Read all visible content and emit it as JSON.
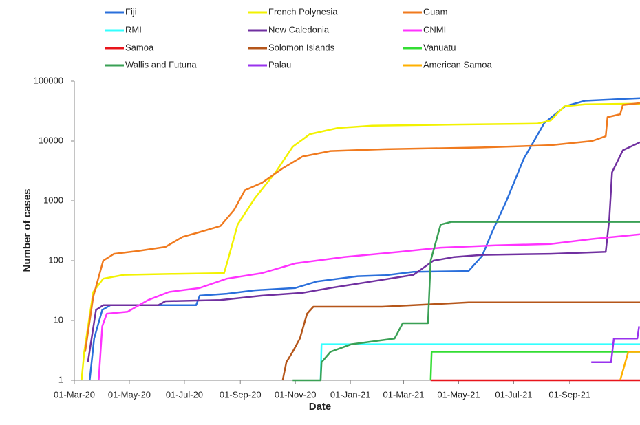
{
  "chart_data": {
    "type": "line",
    "log_y": true,
    "grid": false,
    "legend": "top",
    "xlabel": "Date",
    "ylabel": "Number of cases",
    "xlim": [
      "2020-03-01",
      "2021-11-18"
    ],
    "ylim": [
      1,
      100000
    ],
    "xticks": [
      {
        "value": "2020-03-01",
        "label": "01-Mar-20"
      },
      {
        "value": "2020-05-01",
        "label": "01-May-20"
      },
      {
        "value": "2020-07-01",
        "label": "01-Jul-20"
      },
      {
        "value": "2020-09-01",
        "label": "01-Sep-20"
      },
      {
        "value": "2020-11-01",
        "label": "01-Nov-20"
      },
      {
        "value": "2021-01-01",
        "label": "01-Jan-21"
      },
      {
        "value": "2021-03-01",
        "label": "01-Mar-21"
      },
      {
        "value": "2021-05-01",
        "label": "01-May-21"
      },
      {
        "value": "2021-07-01",
        "label": "01-Jul-21"
      },
      {
        "value": "2021-09-01",
        "label": "01-Sep-21"
      }
    ],
    "yticks": [
      1,
      10,
      100,
      1000,
      10000,
      100000
    ],
    "series": [
      {
        "name": "Fiji",
        "color": "#2a6fdb",
        "x": [
          "2020-03-18",
          "2020-03-23",
          "2020-04-01",
          "2020-04-10",
          "2020-07-14",
          "2020-07-18",
          "2020-08-17",
          "2020-09-17",
          "2020-11-01",
          "2020-11-25",
          "2021-01-09",
          "2021-02-09",
          "2021-03-12",
          "2021-05-12",
          "2021-05-27",
          "2021-06-07",
          "2021-06-23",
          "2021-07-12",
          "2021-08-04",
          "2021-08-27",
          "2021-09-18",
          "2021-11-18"
        ],
        "values": [
          1,
          5,
          15,
          18,
          18,
          26,
          28,
          32,
          35,
          45,
          55,
          57,
          65,
          67,
          120,
          300,
          1000,
          5000,
          20000,
          38000,
          47000,
          52000
        ]
      },
      {
        "name": "French Polynesia",
        "color": "#f2f200",
        "x": [
          "2020-03-09",
          "2020-03-12",
          "2020-03-22",
          "2020-04-02",
          "2020-04-25",
          "2020-06-17",
          "2020-08-14",
          "2020-08-18",
          "2020-08-29",
          "2020-09-17",
          "2020-10-10",
          "2020-10-29",
          "2020-11-17",
          "2020-12-18",
          "2021-01-25",
          "2021-04-26",
          "2021-07-27",
          "2021-08-11",
          "2021-08-26",
          "2021-09-18",
          "2021-11-18"
        ],
        "values": [
          1,
          3,
          30,
          50,
          58,
          60,
          62,
          100,
          400,
          1100,
          3000,
          8000,
          13000,
          16500,
          18000,
          18800,
          19500,
          22000,
          38000,
          41000,
          42000
        ]
      },
      {
        "name": "Guam",
        "color": "#f07a1e",
        "x": [
          "2020-03-13",
          "2020-03-22",
          "2020-04-02",
          "2020-04-14",
          "2020-05-10",
          "2020-06-10",
          "2020-06-29",
          "2020-07-18",
          "2020-08-10",
          "2020-08-25",
          "2020-09-06",
          "2020-09-25",
          "2020-10-18",
          "2020-11-09",
          "2020-12-10",
          "2021-02-09",
          "2021-05-27",
          "2021-08-11",
          "2021-09-26",
          "2021-10-11",
          "2021-10-13",
          "2021-10-27",
          "2021-10-30",
          "2021-11-18"
        ],
        "values": [
          3,
          25,
          100,
          130,
          145,
          170,
          250,
          300,
          380,
          700,
          1500,
          2000,
          3500,
          5500,
          6800,
          7300,
          7800,
          8500,
          10000,
          12000,
          25000,
          28000,
          40000,
          43000
        ]
      },
      {
        "name": "RMI",
        "color": "#33ffff",
        "x": [
          "2020-11-29",
          "2020-11-30",
          "2021-11-18"
        ],
        "values": [
          1,
          4,
          4
        ]
      },
      {
        "name": "New Caledonia",
        "color": "#7030a0",
        "x": [
          "2020-03-16",
          "2020-03-25",
          "2020-04-02",
          "2020-06-02",
          "2020-06-10",
          "2020-08-10",
          "2020-09-25",
          "2020-11-09",
          "2020-12-10",
          "2021-01-25",
          "2021-03-12",
          "2021-04-03",
          "2021-04-26",
          "2021-05-27",
          "2021-08-11",
          "2021-10-11",
          "2021-10-15",
          "2021-10-18",
          "2021-10-30",
          "2021-11-18"
        ],
        "values": [
          2,
          15,
          18,
          18,
          21,
          22,
          26,
          29,
          35,
          45,
          58,
          100,
          115,
          125,
          130,
          140,
          500,
          3000,
          7000,
          9500
        ]
      },
      {
        "name": "CNMI",
        "color": "#ff33ff",
        "x": [
          "2020-03-28",
          "2020-04-01",
          "2020-04-06",
          "2020-04-29",
          "2020-05-22",
          "2020-06-14",
          "2020-07-18",
          "2020-08-17",
          "2020-09-25",
          "2020-11-01",
          "2020-12-25",
          "2021-02-24",
          "2021-04-11",
          "2021-06-11",
          "2021-08-11",
          "2021-09-26",
          "2021-11-18"
        ],
        "values": [
          1,
          8,
          13,
          14,
          22,
          30,
          35,
          50,
          62,
          90,
          115,
          140,
          165,
          180,
          190,
          230,
          275
        ]
      },
      {
        "name": "Samoa",
        "color": "#e8141b",
        "x": [
          "2021-03-31",
          "2021-11-18"
        ],
        "values": [
          1,
          1
        ]
      },
      {
        "name": "Solomon Islands",
        "color": "#b5561a",
        "x": [
          "2020-10-18",
          "2020-10-22",
          "2020-10-29",
          "2020-11-06",
          "2020-11-14",
          "2020-11-21",
          "2021-02-05",
          "2021-03-12",
          "2021-05-12",
          "2021-11-18"
        ],
        "values": [
          1,
          2,
          3,
          5,
          13,
          17,
          17,
          18,
          20,
          20
        ]
      },
      {
        "name": "Vanuatu",
        "color": "#33dd33",
        "x": [
          "2021-03-31",
          "2021-04-01",
          "2021-11-18"
        ],
        "values": [
          1,
          3,
          3
        ]
      },
      {
        "name": "Wallis and Futuna",
        "color": "#3aa055",
        "x": [
          "2020-10-29",
          "2020-11-29",
          "2020-11-30",
          "2020-12-10",
          "2021-01-02",
          "2021-02-19",
          "2021-02-28",
          "2021-03-28",
          "2021-03-31",
          "2021-04-11",
          "2021-04-23",
          "2021-11-18"
        ],
        "values": [
          1,
          1,
          2,
          3,
          4,
          5,
          9,
          9,
          100,
          400,
          445,
          445
        ]
      },
      {
        "name": "Palau",
        "color": "#9933ee",
        "x": [
          "2021-09-25",
          "2021-10-17",
          "2021-10-20",
          "2021-11-15",
          "2021-11-17"
        ],
        "values": [
          2,
          2,
          5,
          5,
          8
        ]
      },
      {
        "name": "American Samoa",
        "color": "#ffb000",
        "x": [
          "2021-10-27",
          "2021-11-05",
          "2021-11-18"
        ],
        "values": [
          1,
          3,
          3
        ]
      }
    ]
  }
}
